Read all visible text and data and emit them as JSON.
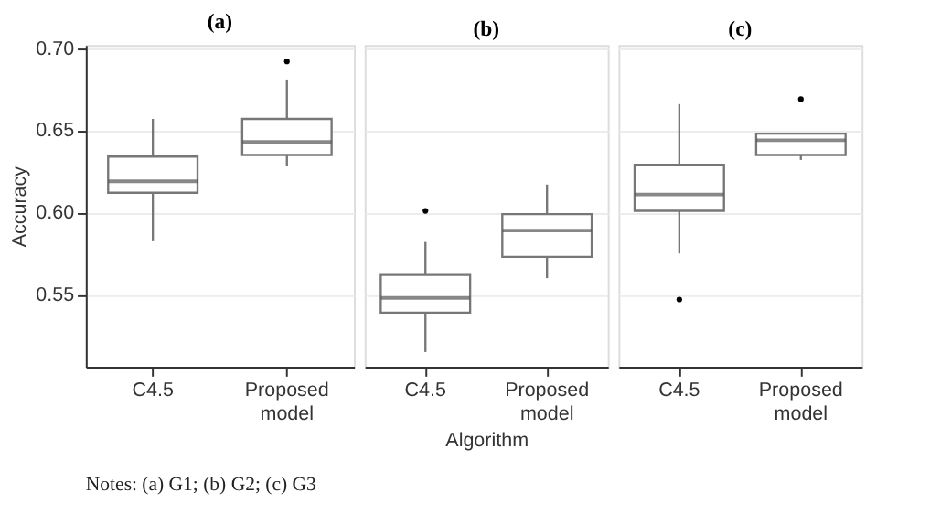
{
  "chart_data": [
    {
      "type": "box",
      "title": "(a)",
      "ylabel": "Accuracy",
      "categories": [
        "C4.5",
        "Proposed model"
      ],
      "ylim": [
        0.506,
        0.702
      ],
      "yticks": [
        {
          "value": 0.55,
          "label": "0.55"
        },
        {
          "value": 0.6,
          "label": "0.60"
        },
        {
          "value": 0.65,
          "label": "0.65"
        },
        {
          "value": 0.7,
          "label": "0.70"
        }
      ],
      "grid": "y",
      "annotations": [
        "Notes: (a) G1; (b) G2; (c) G3"
      ],
      "series": [
        {
          "color": "#777777",
          "boxes": [
            {
              "low": 0.583,
              "q1": 0.612,
              "median": 0.619,
              "q3": 0.634,
              "high": 0.657
            },
            {
              "low": 0.628,
              "q1": 0.635,
              "median": 0.643,
              "q3": 0.657,
              "high": 0.681,
              "outliers": [
                0.692
              ]
            }
          ]
        }
      ]
    },
    {
      "type": "box",
      "title": "(b)",
      "xlabel": "Algorithm",
      "categories": [
        "C4.5",
        "Proposed model"
      ],
      "ylim": [
        0.506,
        0.702
      ],
      "yticks": [
        0.55,
        0.6,
        0.65,
        0.7
      ],
      "grid": "y",
      "tick_labels": "x",
      "series": [
        {
          "color": "#777777",
          "boxes": [
            {
              "low": 0.515,
              "q1": 0.539,
              "median": 0.548,
              "q3": 0.562,
              "high": 0.582,
              "outliers": [
                0.601
              ]
            },
            {
              "low": 0.56,
              "q1": 0.573,
              "median": 0.589,
              "q3": 0.599,
              "high": 0.617
            }
          ]
        }
      ]
    },
    {
      "type": "box",
      "title": "(c)",
      "categories": [
        "C4.5",
        "Proposed model"
      ],
      "ylim": [
        0.506,
        0.702
      ],
      "yticks": [
        0.55,
        0.6,
        0.65,
        0.7
      ],
      "grid": "y",
      "tick_labels": "x",
      "series": [
        {
          "color": "#777777",
          "boxes": [
            {
              "low": 0.575,
              "q1": 0.601,
              "median": 0.611,
              "q3": 0.629,
              "high": 0.666,
              "outliers": [
                0.547
              ]
            },
            {
              "low": 0.632,
              "q1": 0.635,
              "median": 0.644,
              "q3": 0.648,
              "high": 0.648,
              "outliers": [
                0.669
              ]
            }
          ]
        }
      ]
    }
  ]
}
